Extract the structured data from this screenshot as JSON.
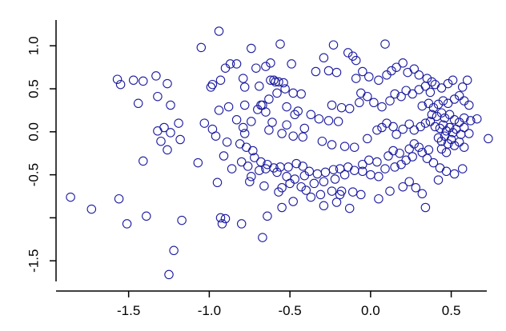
{
  "chart_data": {
    "type": "scatter",
    "title": "",
    "xlabel": "",
    "ylabel": "",
    "xlim": [
      -1.95,
      0.78
    ],
    "ylim": [
      -1.74,
      1.3
    ],
    "xticks": [
      -1.5,
      -1.0,
      -0.5,
      0.0,
      0.5
    ],
    "xtick_labels": [
      "-1.5",
      "-1.0",
      "-0.5",
      "0.0",
      "0.5"
    ],
    "yticks": [
      -1.5,
      -1.0,
      -0.5,
      0.0,
      0.5,
      1.0
    ],
    "ytick_labels": [
      "-1.5",
      "",
      "-0.5",
      "0.0",
      "0.5",
      "1.0"
    ],
    "grid": false,
    "legend": "none",
    "marker": "open-circle",
    "color": "#1a1aa0",
    "series": [
      {
        "points": [
          [
            -0.94,
            1.17
          ],
          [
            -1.05,
            0.98
          ],
          [
            -0.74,
            0.97
          ],
          [
            -0.56,
            1.02
          ],
          [
            -0.23,
            1.01
          ],
          [
            0.09,
            1.02
          ],
          [
            -0.14,
            0.92
          ],
          [
            -0.11,
            0.88
          ],
          [
            -0.09,
            0.83
          ],
          [
            -0.29,
            0.86
          ],
          [
            -0.49,
            0.79
          ],
          [
            -0.62,
            0.8
          ],
          [
            -0.87,
            0.79
          ],
          [
            -0.83,
            0.79
          ],
          [
            -0.9,
            0.74
          ],
          [
            -0.71,
            0.74
          ],
          [
            -0.65,
            0.76
          ],
          [
            -0.93,
            0.6
          ],
          [
            -0.98,
            0.55
          ],
          [
            -0.99,
            0.52
          ],
          [
            -0.79,
            0.62
          ],
          [
            -0.62,
            0.6
          ],
          [
            -0.57,
            0.58
          ],
          [
            -0.54,
            0.57
          ],
          [
            -0.59,
            0.58
          ],
          [
            -0.69,
            0.53
          ],
          [
            -0.78,
            0.52
          ],
          [
            -0.53,
            0.5
          ],
          [
            -0.48,
            0.45
          ],
          [
            -0.43,
            0.44
          ],
          [
            -0.34,
            0.7
          ],
          [
            -0.26,
            0.71
          ],
          [
            -0.21,
            0.69
          ],
          [
            -0.05,
            0.7
          ],
          [
            -0.09,
            0.62
          ],
          [
            -0.01,
            0.64
          ],
          [
            0.05,
            0.6
          ],
          [
            -1.57,
            0.61
          ],
          [
            -1.47,
            0.6
          ],
          [
            -1.41,
            0.59
          ],
          [
            -1.33,
            0.65
          ],
          [
            -1.26,
            0.56
          ],
          [
            -1.55,
            0.55
          ],
          [
            -1.44,
            0.33
          ],
          [
            -1.32,
            0.41
          ],
          [
            -1.24,
            0.31
          ],
          [
            -1.19,
            0.1
          ],
          [
            -1.28,
            0.05
          ],
          [
            -1.32,
            0.01
          ],
          [
            -1.24,
            -0.01
          ],
          [
            -1.18,
            -0.09
          ],
          [
            -1.3,
            -0.11
          ],
          [
            -1.26,
            -0.21
          ],
          [
            -1.41,
            -0.34
          ],
          [
            -1.07,
            -0.36
          ],
          [
            -1.03,
            0.1
          ],
          [
            -0.98,
            0.03
          ],
          [
            -0.94,
            0.25
          ],
          [
            -0.96,
            -0.05
          ],
          [
            -0.89,
            -0.12
          ],
          [
            -0.81,
            -0.14
          ],
          [
            -0.77,
            -0.18
          ],
          [
            -0.73,
            -0.22
          ],
          [
            -0.83,
            0.14
          ],
          [
            -0.79,
            0.05
          ],
          [
            -0.78,
            -0.02
          ],
          [
            -0.7,
            0.26
          ],
          [
            -0.68,
            0.31
          ],
          [
            -0.65,
            0.23
          ],
          [
            -0.61,
            0.11
          ],
          [
            -0.52,
            0.08
          ],
          [
            -0.47,
            0.2
          ],
          [
            -0.41,
            0.04
          ],
          [
            -0.88,
            0.29
          ],
          [
            -0.78,
            0.31
          ],
          [
            -0.74,
            0.12
          ],
          [
            -0.63,
            0.02
          ],
          [
            -0.55,
            -0.02
          ],
          [
            -0.48,
            -0.05
          ],
          [
            -0.42,
            -0.06
          ],
          [
            -0.3,
            -0.11
          ],
          [
            -0.24,
            -0.15
          ],
          [
            -0.16,
            -0.17
          ],
          [
            -0.1,
            -0.18
          ],
          [
            -0.72,
            -0.3
          ],
          [
            -0.68,
            -0.35
          ],
          [
            -0.64,
            -0.38
          ],
          [
            -0.6,
            -0.42
          ],
          [
            -0.56,
            -0.41
          ],
          [
            -0.51,
            -0.41
          ],
          [
            -0.46,
            -0.37
          ],
          [
            -0.42,
            -0.4
          ],
          [
            -0.38,
            -0.46
          ],
          [
            -0.33,
            -0.49
          ],
          [
            -0.28,
            -0.47
          ],
          [
            -0.23,
            -0.44
          ],
          [
            -0.19,
            -0.43
          ],
          [
            -0.14,
            -0.41
          ],
          [
            -0.1,
            -0.45
          ],
          [
            -0.05,
            -0.46
          ],
          [
            -0.8,
            -0.35
          ],
          [
            -0.76,
            -0.4
          ],
          [
            -0.69,
            -0.45
          ],
          [
            -0.65,
            -0.43
          ],
          [
            -0.58,
            -0.47
          ],
          [
            -0.52,
            -0.52
          ],
          [
            -0.47,
            -0.55
          ],
          [
            -0.41,
            -0.51
          ],
          [
            -0.35,
            -0.6
          ],
          [
            -0.29,
            -0.58
          ],
          [
            -0.22,
            -0.55
          ],
          [
            -0.16,
            -0.5
          ],
          [
            -0.91,
            -0.28
          ],
          [
            -0.95,
            -0.59
          ],
          [
            -0.86,
            -0.43
          ],
          [
            -0.74,
            -0.52
          ],
          [
            -0.66,
            -0.63
          ],
          [
            -0.55,
            -0.65
          ],
          [
            -0.5,
            -0.6
          ],
          [
            -0.4,
            -0.68
          ],
          [
            -0.31,
            -0.73
          ],
          [
            -0.24,
            -0.69
          ],
          [
            -0.19,
            -0.73
          ],
          [
            -0.75,
            -0.58
          ],
          [
            -0.57,
            -0.7
          ],
          [
            -0.43,
            -0.64
          ],
          [
            -0.37,
            -0.76
          ],
          [
            -0.29,
            -0.86
          ],
          [
            -0.21,
            -0.82
          ],
          [
            -0.13,
            -0.89
          ],
          [
            -0.06,
            -0.73
          ],
          [
            -0.64,
            -0.98
          ],
          [
            -0.55,
            -0.88
          ],
          [
            -0.48,
            -0.81
          ],
          [
            -0.93,
            -1.0
          ],
          [
            -0.9,
            -1.01
          ],
          [
            -0.92,
            -1.07
          ],
          [
            -0.8,
            -1.07
          ],
          [
            -1.17,
            -1.03
          ],
          [
            -1.39,
            -0.98
          ],
          [
            -1.51,
            -1.07
          ],
          [
            -1.56,
            -0.78
          ],
          [
            -1.73,
            -0.9
          ],
          [
            -1.86,
            -0.76
          ],
          [
            -1.22,
            -1.38
          ],
          [
            -1.25,
            -1.66
          ],
          [
            -0.67,
            -1.23
          ],
          [
            -0.18,
            -0.69
          ],
          [
            -0.11,
            -0.7
          ],
          [
            0.05,
            -0.78
          ],
          [
            0.12,
            -0.69
          ],
          [
            0.2,
            -0.64
          ],
          [
            0.24,
            -0.58
          ],
          [
            0.28,
            -0.65
          ],
          [
            0.32,
            -0.72
          ],
          [
            0.34,
            -0.88
          ],
          [
            0.42,
            -0.56
          ],
          [
            0.0,
            -0.5
          ],
          [
            0.05,
            -0.52
          ],
          [
            0.09,
            -0.43
          ],
          [
            0.15,
            -0.41
          ],
          [
            0.19,
            -0.38
          ],
          [
            0.22,
            -0.33
          ],
          [
            0.26,
            -0.29
          ],
          [
            0.32,
            -0.24
          ],
          [
            0.36,
            -0.21
          ],
          [
            -0.05,
            -0.38
          ],
          [
            -0.01,
            -0.33
          ],
          [
            0.04,
            -0.35
          ],
          [
            0.11,
            -0.28
          ],
          [
            0.14,
            -0.22
          ],
          [
            0.18,
            -0.25
          ],
          [
            0.24,
            -0.2
          ],
          [
            0.27,
            -0.14
          ],
          [
            0.3,
            -0.18
          ],
          [
            -0.02,
            -0.08
          ],
          [
            0.04,
            0.02
          ],
          [
            0.07,
            0.05
          ],
          [
            0.1,
            0.1
          ],
          [
            0.14,
            0.06
          ],
          [
            0.16,
            -0.03
          ],
          [
            0.2,
            0.03
          ],
          [
            0.24,
            0.09
          ],
          [
            0.27,
            0.02
          ],
          [
            0.31,
            0.06
          ],
          [
            0.34,
            0.1
          ],
          [
            0.37,
            0.12
          ],
          [
            0.02,
            0.34
          ],
          [
            0.07,
            0.29
          ],
          [
            0.12,
            0.36
          ],
          [
            0.15,
            0.44
          ],
          [
            0.19,
            0.41
          ],
          [
            0.22,
            0.48
          ],
          [
            0.26,
            0.44
          ],
          [
            0.3,
            0.49
          ],
          [
            0.34,
            0.53
          ],
          [
            0.37,
            0.46
          ],
          [
            0.4,
            0.55
          ],
          [
            0.44,
            0.51
          ],
          [
            0.48,
            0.56
          ],
          [
            0.51,
            0.6
          ],
          [
            0.1,
            0.66
          ],
          [
            0.13,
            0.71
          ],
          [
            0.16,
            0.75
          ],
          [
            0.2,
            0.8
          ],
          [
            0.23,
            0.69
          ],
          [
            0.27,
            0.73
          ],
          [
            0.3,
            0.66
          ],
          [
            0.35,
            0.62
          ],
          [
            0.38,
            0.58
          ],
          [
            -0.6,
            0.6
          ],
          [
            -0.58,
            0.45
          ],
          [
            -0.63,
            0.38
          ],
          [
            -0.67,
            0.31
          ],
          [
            -0.52,
            0.29
          ],
          [
            -0.45,
            0.24
          ],
          [
            -0.37,
            0.2
          ],
          [
            -0.32,
            0.15
          ],
          [
            -0.26,
            0.13
          ],
          [
            -0.2,
            0.12
          ],
          [
            -0.24,
            0.31
          ],
          [
            -0.18,
            0.28
          ],
          [
            -0.13,
            0.27
          ],
          [
            -0.07,
            0.34
          ],
          [
            -0.02,
            0.41
          ],
          [
            -0.06,
            0.45
          ],
          [
            0.32,
            0.3
          ],
          [
            0.36,
            0.33
          ],
          [
            0.39,
            0.28
          ],
          [
            0.42,
            0.32
          ],
          [
            0.45,
            0.36
          ],
          [
            0.48,
            0.33
          ],
          [
            0.52,
            0.38
          ],
          [
            0.55,
            0.42
          ],
          [
            0.58,
            0.36
          ],
          [
            0.61,
            0.31
          ],
          [
            0.38,
            0.2
          ],
          [
            0.41,
            0.18
          ],
          [
            0.44,
            0.22
          ],
          [
            0.46,
            0.16
          ],
          [
            0.49,
            0.2
          ],
          [
            0.52,
            0.14
          ],
          [
            0.55,
            0.11
          ],
          [
            0.58,
            0.16
          ],
          [
            0.62,
            0.13
          ],
          [
            0.66,
            0.15
          ],
          [
            0.4,
            0.06
          ],
          [
            0.43,
            0.04
          ],
          [
            0.45,
            0.08
          ],
          [
            0.47,
            0.01
          ],
          [
            0.49,
            0.05
          ],
          [
            0.51,
            -0.01
          ],
          [
            0.53,
            0.03
          ],
          [
            0.56,
            -0.03
          ],
          [
            0.58,
            0.05
          ],
          [
            0.61,
            -0.02
          ],
          [
            0.42,
            -0.07
          ],
          [
            0.44,
            -0.11
          ],
          [
            0.46,
            -0.05
          ],
          [
            0.48,
            -0.14
          ],
          [
            0.5,
            -0.09
          ],
          [
            0.52,
            -0.16
          ],
          [
            0.55,
            -0.12
          ],
          [
            0.58,
            -0.18
          ],
          [
            0.44,
            -0.2
          ],
          [
            0.47,
            -0.24
          ],
          [
            0.35,
            -0.31
          ],
          [
            0.39,
            -0.36
          ],
          [
            0.43,
            -0.42
          ],
          [
            0.47,
            -0.46
          ],
          [
            0.52,
            -0.49
          ],
          [
            0.57,
            -0.43
          ],
          [
            0.73,
            -0.08
          ],
          [
            0.6,
            0.6
          ],
          [
            0.57,
            0.52
          ]
        ]
      }
    ]
  }
}
